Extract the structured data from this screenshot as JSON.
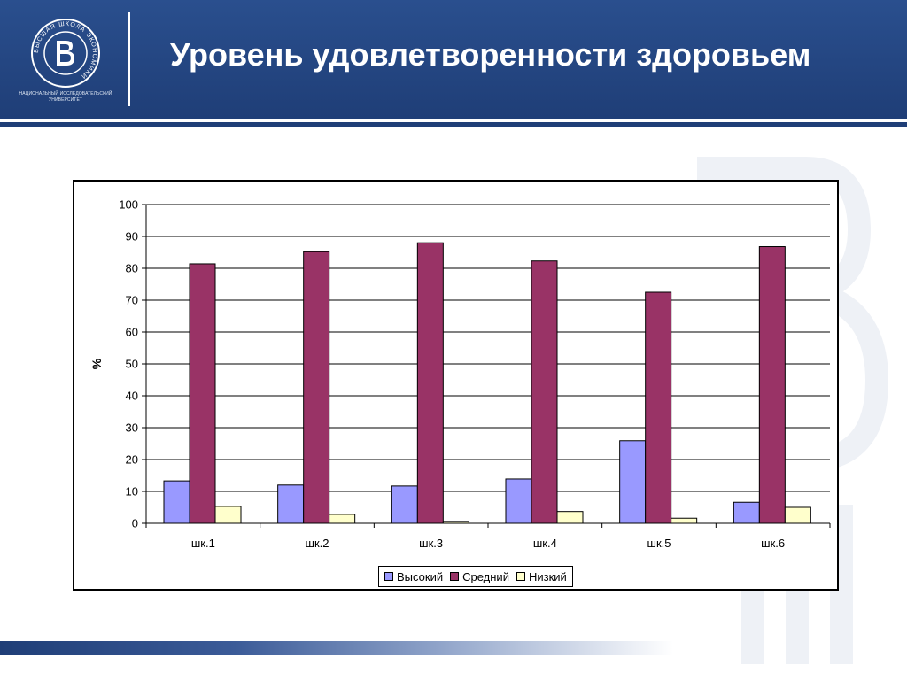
{
  "header": {
    "title": "Уровень удовлетворенности здоровьем",
    "logo_caption": "НАЦИОНАЛЬНЫЙ ИССЛЕДОВАТЕЛЬСКИЙ УНИВЕРСИТЕТ",
    "logo_ring_text": "ВЫСШАЯ ШКОЛА ЭКОНОМИКИ",
    "colors": {
      "header_bg": "#2a4f8e",
      "dark": "#1f3e77"
    }
  },
  "chart_data": {
    "type": "bar",
    "categories": [
      "шк.1",
      "шк.2",
      "шк.3",
      "шк.4",
      "шк.5",
      "шк.6"
    ],
    "series": [
      {
        "name": "Высокий",
        "color": "#9999ff",
        "values": [
          13.3,
          12.0,
          11.7,
          13.9,
          25.9,
          6.6
        ]
      },
      {
        "name": "Средний",
        "color": "#993366",
        "values": [
          81.4,
          85.2,
          88.0,
          82.3,
          72.5,
          86.8
        ]
      },
      {
        "name": "Низкий",
        "color": "#ffffcc",
        "values": [
          5.3,
          2.8,
          0.6,
          3.7,
          1.6,
          5.0
        ]
      }
    ],
    "ylabel": "%",
    "ylim": [
      0,
      100
    ],
    "yticks": [
      0,
      10,
      20,
      30,
      40,
      50,
      60,
      70,
      80,
      90,
      100
    ],
    "grid": true,
    "legend_position": "bottom"
  }
}
